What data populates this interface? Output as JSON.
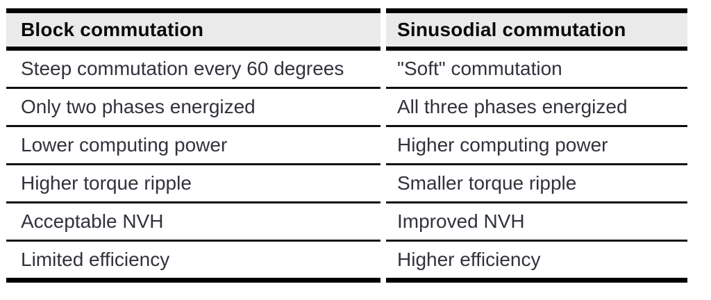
{
  "table": {
    "headers": [
      "Block commutation",
      "Sinusodial commutation"
    ],
    "rows": [
      [
        "Steep commutation every 60 degrees",
        "\"Soft\" commutation"
      ],
      [
        "Only two phases energized",
        "All three phases energized"
      ],
      [
        "Lower computing power",
        "Higher computing power"
      ],
      [
        "Higher torque ripple",
        "Smaller torque ripple"
      ],
      [
        "Acceptable NVH",
        "Improved NVH"
      ],
      [
        "Limited efficiency",
        "Higher efficiency"
      ]
    ]
  },
  "colors": {
    "page_background": "#ffffff",
    "header_background": "#eaeaea",
    "rule": "#000000",
    "header_text": "#0a0a0a",
    "body_text": "#32323c"
  }
}
